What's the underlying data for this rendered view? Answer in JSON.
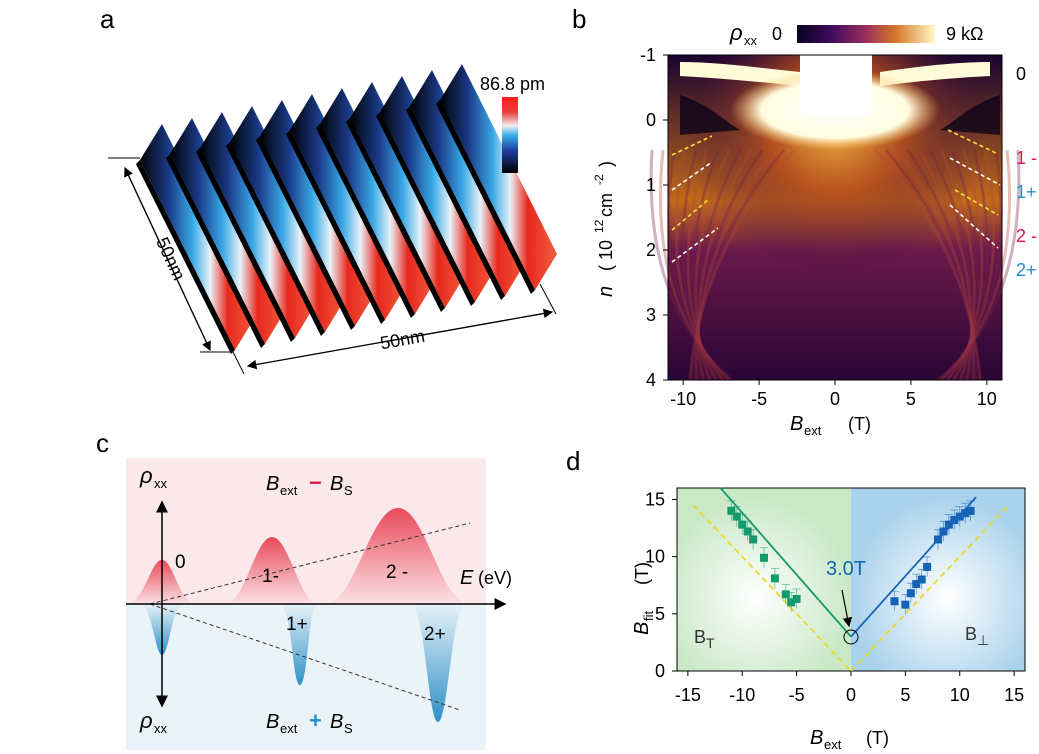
{
  "panels": {
    "a": "a",
    "b": "b",
    "c": "c",
    "d": "d"
  },
  "panel_a": {
    "colorbar_max": "86.8 pm",
    "dim_left": "50nm",
    "dim_bottom": "50nm",
    "colors": {
      "low": "#000000",
      "mid": "#2b8fd6",
      "high": "#e8281d"
    }
  },
  "panel_b": {
    "cbar_label": "ρ",
    "cbar_sub": "xx",
    "cbar_min": "0",
    "cbar_max": "9 kΩ",
    "ylabel": "n",
    "ylabel_unit": "( 10",
    "ylabel_exp": "12",
    "ylabel_unit2": "cm",
    "ylabel_exp2": "-2",
    "ylabel_close": ")",
    "xlabel": "B",
    "xlabel_sub": "ext",
    "xlabel_unit": "(T)",
    "yticks": [
      "-1",
      "0",
      "1",
      "2",
      "3",
      "4"
    ],
    "xticks": [
      "-10",
      "-5",
      "0",
      "5",
      "10"
    ],
    "ll_labels": [
      {
        "text": "0",
        "color": "#000000"
      },
      {
        "text": "1 -",
        "color": "#e0154b"
      },
      {
        "text": "1+",
        "color": "#1f8fd0"
      },
      {
        "text": "2 -",
        "color": "#e0154b"
      },
      {
        "text": "2+",
        "color": "#1f8fd0"
      }
    ]
  },
  "panel_c": {
    "rho_top": "ρ",
    "rho_top_sub": "xx",
    "rho_bottom": "ρ",
    "rho_bottom_sub": "xx",
    "top_B": "B",
    "top_B_sub": "ext",
    "top_op": "−",
    "top_BS": "B",
    "top_BS_sub": "S",
    "bot_B": "B",
    "bot_B_sub": "ext",
    "bot_op": "+",
    "bot_BS": "B",
    "bot_BS_sub": "S",
    "energy_axis": "E",
    "energy_unit": "(eV)",
    "peaks": [
      "0",
      "1-",
      "2 -",
      "1+",
      "2+"
    ],
    "colors": {
      "top_bg": "#fbe8ea",
      "bottom_bg": "#e9f3f8",
      "minus": "#e0154b",
      "plus": "#1f8fd0"
    }
  },
  "chart_data": {
    "type": "scatter",
    "title": "",
    "xlabel": "B_ext (T)",
    "ylabel": "B_fit (T)",
    "xlabel_main": "B",
    "xlabel_sub": "ext",
    "xlabel_unit": "(T)",
    "ylabel_main": "B",
    "ylabel_sub": "fit",
    "ylabel_unit": "(T)",
    "xlim": [
      -16,
      16
    ],
    "ylim": [
      0,
      16
    ],
    "xticks": [
      -15,
      -10,
      -5,
      0,
      5,
      10,
      15
    ],
    "yticks": [
      0,
      5,
      10,
      15
    ],
    "annotation": "3.0T",
    "region_left": "B",
    "region_left_sub": "T",
    "region_right": "B",
    "region_right_sub": "⊥",
    "series": [
      {
        "name": "left",
        "color": "#149a6c",
        "x": [
          -11,
          -10.5,
          -10,
          -9.5,
          -9,
          -8,
          -7,
          -6,
          -5.5,
          -5
        ],
        "y": [
          14,
          13.5,
          12.8,
          12.2,
          11.5,
          9.9,
          8.1,
          6.7,
          6.0,
          6.3
        ]
      },
      {
        "name": "right",
        "color": "#1563b5",
        "x": [
          4,
          5,
          5.5,
          6,
          6.5,
          7,
          8,
          8.5,
          9,
          9.5,
          10,
          10.5,
          11
        ],
        "y": [
          6.1,
          5.8,
          6.8,
          7.6,
          8.0,
          9.1,
          11.5,
          12.2,
          12.8,
          13.2,
          13.5,
          13.8,
          14.0
        ]
      }
    ],
    "fit_lines": [
      {
        "name": "fit-left",
        "color": "#149a6c",
        "x": [
          -12,
          0
        ],
        "y": [
          16,
          3.0
        ]
      },
      {
        "name": "fit-right",
        "color": "#1563b5",
        "x": [
          0,
          11.5
        ],
        "y": [
          3.0,
          15.2
        ]
      },
      {
        "name": "ref-left",
        "color": "#e8d92a",
        "x": [
          -14.5,
          0
        ],
        "y": [
          14.5,
          0
        ]
      },
      {
        "name": "ref-right",
        "color": "#e8d92a",
        "x": [
          0,
          14.5
        ],
        "y": [
          0,
          14.5
        ]
      }
    ]
  }
}
